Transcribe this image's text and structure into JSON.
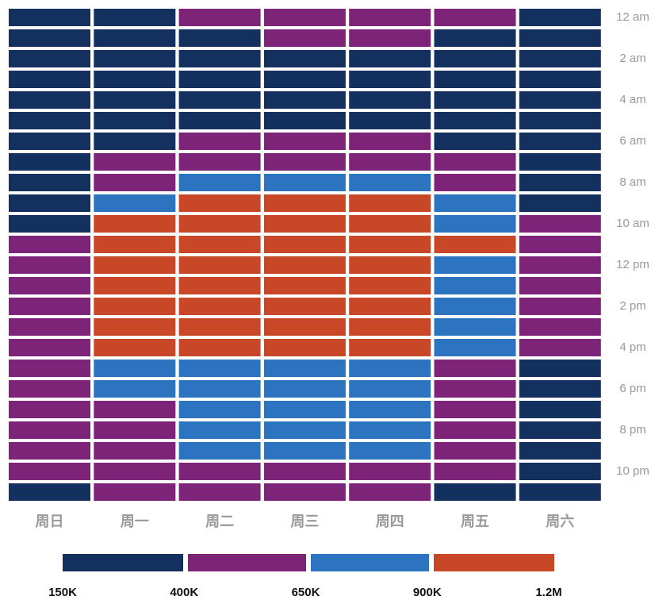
{
  "chart_data": {
    "type": "heatmap",
    "x_categories": [
      "周日",
      "周一",
      "周二",
      "周三",
      "周四",
      "周五",
      "周六"
    ],
    "y_categories": [
      "12 am",
      null,
      "2 am",
      null,
      "4 am",
      null,
      "6 am",
      null,
      "8 am",
      null,
      "10 am",
      null,
      "12 pm",
      null,
      "2 pm",
      null,
      "4 pm",
      null,
      "6 pm",
      null,
      "8 pm",
      null,
      "10 pm",
      null
    ],
    "values": [
      [
        275000,
        275000,
        525000,
        525000,
        525000,
        525000,
        275000
      ],
      [
        275000,
        275000,
        275000,
        525000,
        525000,
        275000,
        275000
      ],
      [
        275000,
        275000,
        275000,
        275000,
        275000,
        275000,
        275000
      ],
      [
        275000,
        275000,
        275000,
        275000,
        275000,
        275000,
        275000
      ],
      [
        275000,
        275000,
        275000,
        275000,
        275000,
        275000,
        275000
      ],
      [
        275000,
        275000,
        275000,
        275000,
        275000,
        275000,
        275000
      ],
      [
        275000,
        275000,
        525000,
        525000,
        525000,
        275000,
        275000
      ],
      [
        275000,
        525000,
        525000,
        525000,
        525000,
        525000,
        275000
      ],
      [
        275000,
        525000,
        775000,
        775000,
        775000,
        525000,
        275000
      ],
      [
        275000,
        775000,
        1050000,
        1050000,
        1050000,
        775000,
        275000
      ],
      [
        275000,
        1050000,
        1050000,
        1050000,
        1050000,
        775000,
        525000
      ],
      [
        525000,
        1050000,
        1050000,
        1050000,
        1050000,
        1050000,
        525000
      ],
      [
        525000,
        1050000,
        1050000,
        1050000,
        1050000,
        775000,
        525000
      ],
      [
        525000,
        1050000,
        1050000,
        1050000,
        1050000,
        775000,
        525000
      ],
      [
        525000,
        1050000,
        1050000,
        1050000,
        1050000,
        775000,
        525000
      ],
      [
        525000,
        1050000,
        1050000,
        1050000,
        1050000,
        775000,
        525000
      ],
      [
        525000,
        1050000,
        1050000,
        1050000,
        1050000,
        775000,
        525000
      ],
      [
        525000,
        775000,
        775000,
        775000,
        775000,
        525000,
        275000
      ],
      [
        525000,
        775000,
        775000,
        775000,
        775000,
        525000,
        275000
      ],
      [
        525000,
        525000,
        775000,
        775000,
        775000,
        525000,
        275000
      ],
      [
        525000,
        525000,
        775000,
        775000,
        775000,
        525000,
        275000
      ],
      [
        525000,
        525000,
        775000,
        775000,
        775000,
        525000,
        275000
      ],
      [
        525000,
        525000,
        525000,
        525000,
        525000,
        525000,
        275000
      ],
      [
        275000,
        525000,
        525000,
        525000,
        525000,
        275000,
        275000
      ]
    ],
    "colorbar_ticks": [
      {
        "value": 150000,
        "label": "150K"
      },
      {
        "value": 400000,
        "label": "400K"
      },
      {
        "value": 650000,
        "label": "650K"
      },
      {
        "value": 900000,
        "label": "900K"
      },
      {
        "value": 1200000,
        "label": "1.2M"
      }
    ],
    "colors": [
      "#14305e",
      "#7e2478",
      "#2c74c0",
      "#c84726"
    ]
  }
}
